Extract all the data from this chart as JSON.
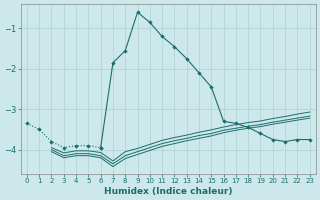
{
  "xlabel": "Humidex (Indice chaleur)",
  "bg_color": "#cce8ea",
  "grid_color": "#b0d0d2",
  "line_color": "#1a6e6a",
  "xlim": [
    -0.5,
    23.5
  ],
  "ylim": [
    -4.6,
    -0.4
  ],
  "yticks": [
    -4,
    -3,
    -2,
    -1
  ],
  "xticks": [
    0,
    1,
    2,
    3,
    4,
    5,
    6,
    7,
    8,
    9,
    10,
    11,
    12,
    13,
    14,
    15,
    16,
    17,
    18,
    19,
    20,
    21,
    22,
    23
  ],
  "dotted_x": [
    0,
    1,
    2,
    3,
    4,
    5,
    6
  ],
  "dotted_y": [
    -3.35,
    -3.5,
    -3.8,
    -3.95,
    -3.9,
    -3.9,
    -3.95
  ],
  "main_x": [
    6,
    7,
    8,
    9,
    10,
    11,
    12,
    13,
    14,
    15,
    16,
    17,
    18,
    19,
    20,
    21,
    22,
    23
  ],
  "main_y": [
    -3.95,
    -1.85,
    -1.55,
    -0.6,
    -0.85,
    -1.2,
    -1.45,
    -1.75,
    -2.1,
    -2.45,
    -3.3,
    -3.35,
    -3.45,
    -3.6,
    -3.75,
    -3.8,
    -3.75,
    -3.75
  ],
  "flat1_x": [
    2,
    3,
    4,
    5,
    6,
    7,
    8,
    9,
    10,
    11,
    12,
    13,
    14,
    15,
    16,
    17,
    18,
    19,
    20,
    21,
    22,
    23
  ],
  "flat1_y": [
    -4.0,
    -4.15,
    -4.1,
    -4.1,
    -4.15,
    -4.35,
    -4.15,
    -4.05,
    -3.95,
    -3.85,
    -3.78,
    -3.72,
    -3.65,
    -3.6,
    -3.52,
    -3.47,
    -3.42,
    -3.38,
    -3.32,
    -3.27,
    -3.22,
    -3.17
  ],
  "flat2_x": [
    2,
    3,
    4,
    5,
    6,
    7,
    8,
    9,
    10,
    11,
    12,
    13,
    14,
    15,
    16,
    17,
    18,
    19,
    20,
    21,
    22,
    23
  ],
  "flat2_y": [
    -4.05,
    -4.2,
    -4.15,
    -4.15,
    -4.2,
    -4.42,
    -4.22,
    -4.12,
    -4.02,
    -3.92,
    -3.85,
    -3.78,
    -3.72,
    -3.66,
    -3.58,
    -3.52,
    -3.47,
    -3.43,
    -3.37,
    -3.32,
    -3.27,
    -3.22
  ],
  "flat3_x": [
    2,
    3,
    4,
    5,
    6,
    7,
    8,
    9,
    10,
    11,
    12,
    13,
    14,
    15,
    16,
    17,
    18,
    19,
    20,
    21,
    22,
    23
  ],
  "flat3_y": [
    -3.95,
    -4.08,
    -4.03,
    -4.03,
    -4.07,
    -4.28,
    -4.05,
    -3.97,
    -3.87,
    -3.77,
    -3.7,
    -3.64,
    -3.57,
    -3.51,
    -3.44,
    -3.38,
    -3.33,
    -3.29,
    -3.23,
    -3.18,
    -3.12,
    -3.07
  ]
}
